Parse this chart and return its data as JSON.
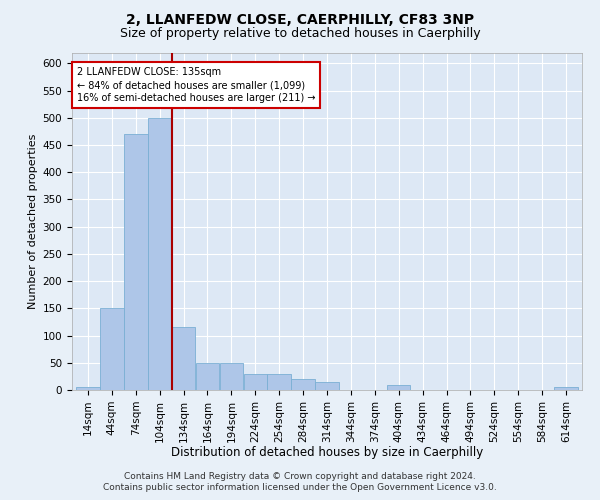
{
  "title1": "2, LLANFEDW CLOSE, CAERPHILLY, CF83 3NP",
  "title2": "Size of property relative to detached houses in Caerphilly",
  "xlabel": "Distribution of detached houses by size in Caerphilly",
  "ylabel": "Number of detached properties",
  "bin_edges": [
    14,
    44,
    74,
    104,
    134,
    164,
    194,
    224,
    254,
    284,
    314,
    344,
    374,
    404,
    434,
    464,
    494,
    524,
    554,
    584,
    614
  ],
  "bar_heights": [
    5,
    150,
    470,
    500,
    115,
    50,
    50,
    30,
    30,
    20,
    15,
    0,
    0,
    10,
    0,
    0,
    0,
    0,
    0,
    0,
    5
  ],
  "bar_color": "#aec6e8",
  "bar_edge_color": "#7aafd4",
  "property_size": 135,
  "vline_color": "#aa0000",
  "annotation_text": "2 LLANFEDW CLOSE: 135sqm\n← 84% of detached houses are smaller (1,099)\n16% of semi-detached houses are larger (211) →",
  "annotation_box_facecolor": "#ffffff",
  "annotation_box_edgecolor": "#cc0000",
  "ylim": [
    0,
    620
  ],
  "yticks": [
    0,
    50,
    100,
    150,
    200,
    250,
    300,
    350,
    400,
    450,
    500,
    550,
    600
  ],
  "footer_line1": "Contains HM Land Registry data © Crown copyright and database right 2024.",
  "footer_line2": "Contains public sector information licensed under the Open Government Licence v3.0.",
  "background_color": "#e8f0f8",
  "plot_bg_color": "#dde8f5",
  "grid_color": "#ffffff",
  "title1_fontsize": 10,
  "title2_fontsize": 9,
  "xlabel_fontsize": 8.5,
  "ylabel_fontsize": 8,
  "tick_fontsize": 7.5,
  "footer_fontsize": 6.5
}
